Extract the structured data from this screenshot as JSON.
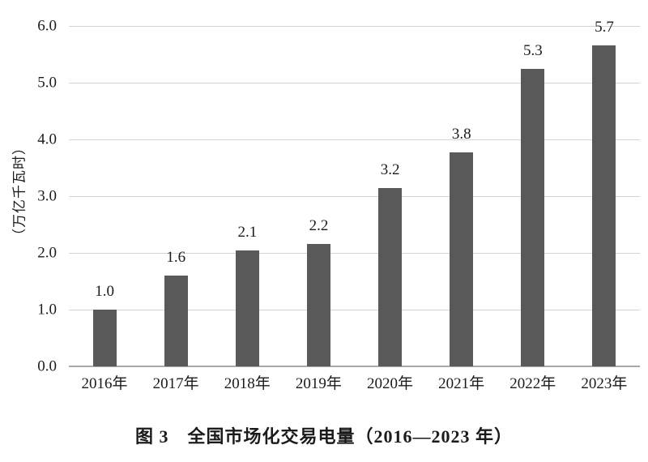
{
  "figure": {
    "caption": "图 3　全国市场化交易电量（2016—2023 年）"
  },
  "chart_data": {
    "type": "bar",
    "title": "图 3　全国市场化交易电量（2016—2023 年）",
    "categories": [
      "2016年",
      "2017年",
      "2018年",
      "2019年",
      "2020年",
      "2021年",
      "2022年",
      "2023年"
    ],
    "values": [
      1.0,
      1.6,
      2.1,
      2.2,
      3.2,
      3.8,
      5.3,
      5.7
    ],
    "data_labels": [
      "1.0",
      "1.6",
      "2.1",
      "2.2",
      "3.2",
      "3.8",
      "5.3",
      "5.7"
    ],
    "plotted_values": [
      1.0,
      1.6,
      2.05,
      2.16,
      3.15,
      3.77,
      5.25,
      5.66
    ],
    "xlabel": "",
    "ylabel": "（万亿千瓦时）",
    "ylim": [
      0,
      6
    ],
    "yticks": [
      "0.0",
      "1.0",
      "2.0",
      "3.0",
      "4.0",
      "5.0",
      "6.0"
    ],
    "grid": true,
    "legend": false,
    "colors": {
      "bar": "#595959",
      "gridline": "#d4d4d4",
      "axis_line": "#a8a8a8",
      "text": "#1b1b1b",
      "background": "#ffffff"
    }
  }
}
